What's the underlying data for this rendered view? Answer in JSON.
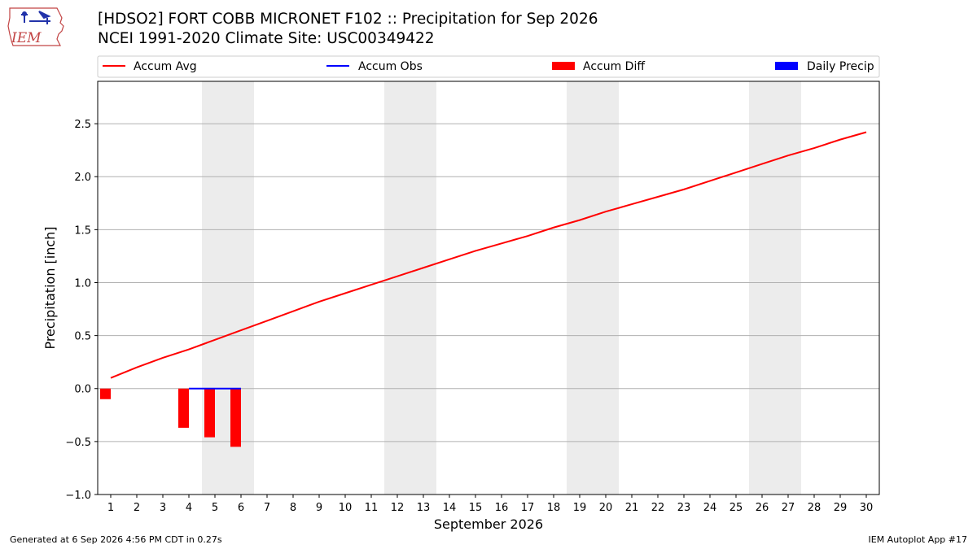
{
  "logo": {
    "text": "IEM"
  },
  "title": {
    "line1": "[HDSO2] FORT COBB MICRONET F102 :: Precipitation for Sep 2026",
    "line2": "NCEI 1991-2020 Climate Site: USC00349422"
  },
  "footer": {
    "left": "Generated at 6 Sep 2026 4:56 PM CDT in 0.27s",
    "right": "IEM Autoplot App #17"
  },
  "colors": {
    "accum_avg": "#ff0000",
    "accum_obs": "#0000ff",
    "accum_diff": "#ff0000",
    "daily_precip": "#0000ff",
    "weekend_band": "#ececec",
    "grid": "#b0b0b0"
  },
  "chart_data": {
    "type": "line",
    "ylabel": "Precipitation [inch]",
    "xlabel": "September 2026",
    "xlim": [
      1,
      30
    ],
    "ylim": [
      -1.0,
      2.9
    ],
    "yticks": [
      -1.0,
      -0.5,
      0.0,
      0.5,
      1.0,
      1.5,
      2.0,
      2.5
    ],
    "ytick_labels": [
      "−1.0",
      "−0.5",
      "0.0",
      "0.5",
      "1.0",
      "1.5",
      "2.0",
      "2.5"
    ],
    "grid": "horizontal",
    "legend_position": "top",
    "days": [
      1,
      2,
      3,
      4,
      5,
      6,
      7,
      8,
      9,
      10,
      11,
      12,
      13,
      14,
      15,
      16,
      17,
      18,
      19,
      20,
      21,
      22,
      23,
      24,
      25,
      26,
      27,
      28,
      29,
      30
    ],
    "weekend_spans": [
      [
        5,
        6
      ],
      [
        12,
        13
      ],
      [
        19,
        20
      ],
      [
        26,
        27
      ]
    ],
    "series": [
      {
        "name": "Accum Avg",
        "kind": "line",
        "x": [
          1,
          2,
          3,
          4,
          5,
          6,
          7,
          8,
          9,
          10,
          11,
          12,
          13,
          14,
          15,
          16,
          17,
          18,
          19,
          20,
          21,
          22,
          23,
          24,
          25,
          26,
          27,
          28,
          29,
          30
        ],
        "values": [
          0.1,
          0.2,
          0.29,
          0.37,
          0.46,
          0.55,
          0.64,
          0.73,
          0.82,
          0.9,
          0.98,
          1.06,
          1.14,
          1.22,
          1.3,
          1.37,
          1.44,
          1.52,
          1.59,
          1.67,
          1.74,
          1.81,
          1.88,
          1.96,
          2.04,
          2.12,
          2.2,
          2.27,
          2.35,
          2.42
        ]
      },
      {
        "name": "Accum Obs",
        "kind": "line",
        "x": [
          4,
          5,
          6
        ],
        "values": [
          0.0,
          0.0,
          0.0
        ]
      },
      {
        "name": "Accum Diff",
        "kind": "bar",
        "x": [
          1,
          4,
          5,
          6
        ],
        "values": [
          -0.1,
          -0.37,
          -0.46,
          -0.55
        ]
      },
      {
        "name": "Daily Precip",
        "kind": "bar",
        "x": [],
        "values": []
      }
    ]
  }
}
